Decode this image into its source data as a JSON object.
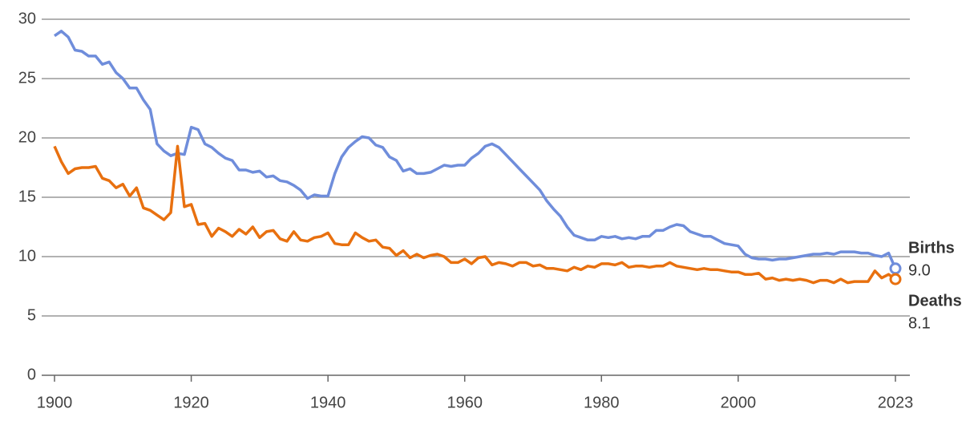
{
  "chart_data": {
    "type": "line",
    "x": [
      1900,
      1901,
      1902,
      1903,
      1904,
      1905,
      1906,
      1907,
      1908,
      1909,
      1910,
      1911,
      1912,
      1913,
      1914,
      1915,
      1916,
      1917,
      1918,
      1919,
      1920,
      1921,
      1922,
      1923,
      1924,
      1925,
      1926,
      1927,
      1928,
      1929,
      1930,
      1931,
      1932,
      1933,
      1934,
      1935,
      1936,
      1937,
      1938,
      1939,
      1940,
      1941,
      1942,
      1943,
      1944,
      1945,
      1946,
      1947,
      1948,
      1949,
      1950,
      1951,
      1952,
      1953,
      1954,
      1955,
      1956,
      1957,
      1958,
      1959,
      1960,
      1961,
      1962,
      1963,
      1964,
      1965,
      1966,
      1967,
      1968,
      1969,
      1970,
      1971,
      1972,
      1973,
      1974,
      1975,
      1976,
      1977,
      1978,
      1979,
      1980,
      1981,
      1982,
      1983,
      1984,
      1985,
      1986,
      1987,
      1988,
      1989,
      1990,
      1991,
      1992,
      1993,
      1994,
      1995,
      1996,
      1997,
      1998,
      1999,
      2000,
      2001,
      2002,
      2003,
      2004,
      2005,
      2006,
      2007,
      2008,
      2009,
      2010,
      2011,
      2012,
      2013,
      2014,
      2015,
      2016,
      2017,
      2018,
      2019,
      2020,
      2021,
      2022,
      2023
    ],
    "series": [
      {
        "name": "Births",
        "color": "#6f8ddb",
        "end_label": "9.0",
        "values": [
          28.6,
          29.0,
          28.5,
          27.4,
          27.3,
          26.9,
          26.9,
          26.2,
          26.4,
          25.5,
          25.0,
          24.2,
          24.2,
          23.2,
          22.4,
          19.5,
          18.9,
          18.5,
          18.7,
          18.6,
          20.9,
          20.7,
          19.5,
          19.2,
          18.7,
          18.3,
          18.1,
          17.3,
          17.3,
          17.1,
          17.2,
          16.7,
          16.8,
          16.4,
          16.3,
          16.0,
          15.6,
          14.9,
          15.2,
          15.1,
          15.1,
          17.0,
          18.4,
          19.2,
          19.7,
          20.1,
          20.0,
          19.4,
          19.2,
          18.4,
          18.1,
          17.2,
          17.4,
          17.0,
          17.0,
          17.1,
          17.4,
          17.7,
          17.6,
          17.7,
          17.7,
          18.3,
          18.7,
          19.3,
          19.5,
          19.2,
          18.6,
          18.0,
          17.4,
          16.8,
          16.2,
          15.6,
          14.7,
          14.0,
          13.4,
          12.5,
          11.8,
          11.6,
          11.4,
          11.4,
          11.7,
          11.6,
          11.7,
          11.5,
          11.6,
          11.5,
          11.7,
          11.7,
          12.2,
          12.2,
          12.5,
          12.7,
          12.6,
          12.1,
          11.9,
          11.7,
          11.7,
          11.4,
          11.1,
          11.0,
          10.9,
          10.2,
          9.9,
          9.8,
          9.8,
          9.7,
          9.8,
          9.8,
          9.9,
          10.0,
          10.1,
          10.2,
          10.2,
          10.3,
          10.2,
          10.4,
          10.4,
          10.4,
          10.3,
          10.3,
          10.1,
          10.0,
          10.3,
          9.0
        ]
      },
      {
        "name": "Deaths",
        "color": "#e8700f",
        "end_label": "8.1",
        "values": [
          19.3,
          18.0,
          17.0,
          17.4,
          17.5,
          17.5,
          17.6,
          16.6,
          16.4,
          15.8,
          16.1,
          15.1,
          15.8,
          14.1,
          13.9,
          13.5,
          13.1,
          13.7,
          19.3,
          14.2,
          14.4,
          12.7,
          12.8,
          11.7,
          12.4,
          12.1,
          11.7,
          12.3,
          11.9,
          12.5,
          11.6,
          12.1,
          12.2,
          11.5,
          11.3,
          12.1,
          11.4,
          11.3,
          11.6,
          11.7,
          12.0,
          11.1,
          11.0,
          11.0,
          12.0,
          11.6,
          11.3,
          11.4,
          10.8,
          10.7,
          10.1,
          10.5,
          9.9,
          10.2,
          9.9,
          10.1,
          10.2,
          10.0,
          9.5,
          9.5,
          9.8,
          9.4,
          9.9,
          10.0,
          9.3,
          9.5,
          9.4,
          9.2,
          9.5,
          9.5,
          9.2,
          9.3,
          9.0,
          9.0,
          8.9,
          8.8,
          9.1,
          8.9,
          9.2,
          9.1,
          9.4,
          9.4,
          9.3,
          9.5,
          9.1,
          9.2,
          9.2,
          9.1,
          9.2,
          9.2,
          9.5,
          9.2,
          9.1,
          9.0,
          8.9,
          9.0,
          8.9,
          8.9,
          8.8,
          8.7,
          8.7,
          8.5,
          8.5,
          8.6,
          8.1,
          8.2,
          8.0,
          8.1,
          8.0,
          8.1,
          8.0,
          7.8,
          8.0,
          8.0,
          7.8,
          8.1,
          7.8,
          7.9,
          7.9,
          7.9,
          8.8,
          8.2,
          8.5,
          8.1
        ]
      }
    ],
    "xlim": [
      1900,
      2023
    ],
    "xticks": [
      1900,
      1920,
      1940,
      1960,
      1980,
      2000,
      2023
    ],
    "ylim": [
      0,
      30
    ],
    "yticks": [
      0,
      5,
      10,
      15,
      20,
      25,
      30
    ],
    "grid": true
  }
}
